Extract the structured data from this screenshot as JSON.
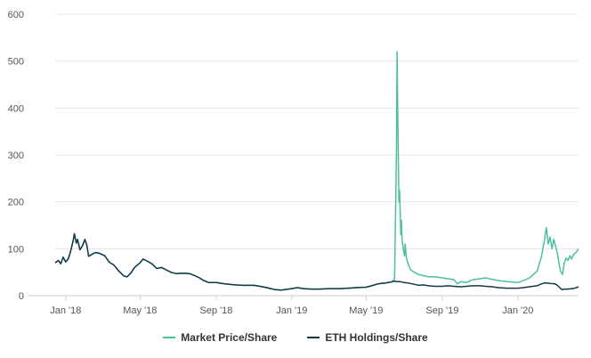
{
  "colors": {
    "market": "#4dbfa0",
    "holdings": "#15384a",
    "grid": "#e6e6e6",
    "axis": "#cccccc"
  },
  "chart_data": {
    "type": "line",
    "title": "",
    "xlabel": "",
    "ylabel": "",
    "xlim": [
      "2017-12-15",
      "2020-04-08"
    ],
    "ylim": [
      0,
      600
    ],
    "yticks": [
      0,
      100,
      200,
      300,
      400,
      500,
      600
    ],
    "xticks": [
      {
        "date": "2018-01-01",
        "label": "Jan '18"
      },
      {
        "date": "2018-05-01",
        "label": "May '18"
      },
      {
        "date": "2018-09-01",
        "label": "Sep '18"
      },
      {
        "date": "2019-01-01",
        "label": "Jan '19"
      },
      {
        "date": "2019-05-01",
        "label": "May '19"
      },
      {
        "date": "2019-09-01",
        "label": "Sep '19"
      },
      {
        "date": "2020-01-01",
        "label": "Jan '20"
      }
    ],
    "grid": "horizontal",
    "legend_position": "bottom-center",
    "series": [
      {
        "name": "Market Price/Share",
        "color": "#4dbfa0",
        "points": [
          [
            "2017-12-15",
            70
          ],
          [
            "2017-12-20",
            75
          ],
          [
            "2017-12-24",
            68
          ],
          [
            "2017-12-28",
            82
          ],
          [
            "2018-01-01",
            72
          ],
          [
            "2018-01-05",
            78
          ],
          [
            "2018-01-09",
            95
          ],
          [
            "2018-01-13",
            118
          ],
          [
            "2018-01-15",
            132
          ],
          [
            "2018-01-18",
            112
          ],
          [
            "2018-01-20",
            120
          ],
          [
            "2018-01-24",
            98
          ],
          [
            "2018-01-28",
            106
          ],
          [
            "2018-02-01",
            120
          ],
          [
            "2018-02-04",
            108
          ],
          [
            "2018-02-07",
            84
          ],
          [
            "2018-02-12",
            88
          ],
          [
            "2018-02-18",
            92
          ],
          [
            "2018-02-25",
            90
          ],
          [
            "2018-03-05",
            85
          ],
          [
            "2018-03-12",
            72
          ],
          [
            "2018-03-20",
            65
          ],
          [
            "2018-03-28",
            52
          ],
          [
            "2018-04-05",
            42
          ],
          [
            "2018-04-10",
            40
          ],
          [
            "2018-04-16",
            48
          ],
          [
            "2018-04-22",
            60
          ],
          [
            "2018-05-01",
            70
          ],
          [
            "2018-05-06",
            78
          ],
          [
            "2018-05-12",
            74
          ],
          [
            "2018-05-20",
            68
          ],
          [
            "2018-05-28",
            58
          ],
          [
            "2018-06-05",
            60
          ],
          [
            "2018-06-12",
            55
          ],
          [
            "2018-06-20",
            50
          ],
          [
            "2018-06-28",
            47
          ],
          [
            "2018-07-10",
            48
          ],
          [
            "2018-07-20",
            47
          ],
          [
            "2018-07-28",
            43
          ],
          [
            "2018-08-05",
            38
          ],
          [
            "2018-08-12",
            32
          ],
          [
            "2018-08-20",
            28
          ],
          [
            "2018-09-01",
            28
          ],
          [
            "2018-09-15",
            25
          ],
          [
            "2018-10-01",
            23
          ],
          [
            "2018-10-15",
            22
          ],
          [
            "2018-11-01",
            22
          ],
          [
            "2018-11-15",
            19
          ],
          [
            "2018-11-25",
            16
          ],
          [
            "2018-12-05",
            13
          ],
          [
            "2018-12-15",
            12
          ],
          [
            "2019-01-01",
            15
          ],
          [
            "2019-01-10",
            17
          ],
          [
            "2019-01-20",
            15
          ],
          [
            "2019-02-01",
            14
          ],
          [
            "2019-02-15",
            14
          ],
          [
            "2019-03-01",
            15
          ],
          [
            "2019-03-20",
            15
          ],
          [
            "2019-04-01",
            16
          ],
          [
            "2019-04-15",
            17
          ],
          [
            "2019-05-01",
            18
          ],
          [
            "2019-05-10",
            21
          ],
          [
            "2019-05-20",
            25
          ],
          [
            "2019-06-01",
            27
          ],
          [
            "2019-06-10",
            29
          ],
          [
            "2019-06-16",
            35
          ],
          [
            "2019-06-19",
            300
          ],
          [
            "2019-06-20",
            520
          ],
          [
            "2019-06-21",
            400
          ],
          [
            "2019-06-22",
            300
          ],
          [
            "2019-06-23",
            200
          ],
          [
            "2019-06-24",
            225
          ],
          [
            "2019-06-25",
            180
          ],
          [
            "2019-06-26",
            130
          ],
          [
            "2019-06-27",
            160
          ],
          [
            "2019-06-28",
            120
          ],
          [
            "2019-06-30",
            100
          ],
          [
            "2019-07-02",
            85
          ],
          [
            "2019-07-03",
            110
          ],
          [
            "2019-07-05",
            80
          ],
          [
            "2019-07-08",
            68
          ],
          [
            "2019-07-12",
            55
          ],
          [
            "2019-07-18",
            50
          ],
          [
            "2019-07-25",
            45
          ],
          [
            "2019-08-01",
            43
          ],
          [
            "2019-08-10",
            40
          ],
          [
            "2019-08-20",
            40
          ],
          [
            "2019-09-01",
            38
          ],
          [
            "2019-09-10",
            36
          ],
          [
            "2019-09-20",
            34
          ],
          [
            "2019-09-25",
            25
          ],
          [
            "2019-10-01",
            30
          ],
          [
            "2019-10-10",
            28
          ],
          [
            "2019-10-20",
            34
          ],
          [
            "2019-11-01",
            36
          ],
          [
            "2019-11-10",
            38
          ],
          [
            "2019-11-20",
            35
          ],
          [
            "2019-12-01",
            32
          ],
          [
            "2019-12-15",
            30
          ],
          [
            "2020-01-01",
            28
          ],
          [
            "2020-01-10",
            32
          ],
          [
            "2020-01-20",
            38
          ],
          [
            "2020-02-01",
            52
          ],
          [
            "2020-02-08",
            82
          ],
          [
            "2020-02-13",
            118
          ],
          [
            "2020-02-16",
            145
          ],
          [
            "2020-02-19",
            110
          ],
          [
            "2020-02-22",
            125
          ],
          [
            "2020-02-25",
            100
          ],
          [
            "2020-02-28",
            120
          ],
          [
            "2020-03-02",
            105
          ],
          [
            "2020-03-05",
            90
          ],
          [
            "2020-03-08",
            65
          ],
          [
            "2020-03-10",
            52
          ],
          [
            "2020-03-13",
            45
          ],
          [
            "2020-03-16",
            70
          ],
          [
            "2020-03-19",
            80
          ],
          [
            "2020-03-22",
            75
          ],
          [
            "2020-03-25",
            85
          ],
          [
            "2020-03-28",
            78
          ],
          [
            "2020-03-31",
            88
          ],
          [
            "2020-04-04",
            92
          ],
          [
            "2020-04-08",
            100
          ]
        ]
      },
      {
        "name": "ETH Holdings/Share",
        "color": "#15384a",
        "points": [
          [
            "2017-12-15",
            70
          ],
          [
            "2017-12-20",
            75
          ],
          [
            "2017-12-24",
            68
          ],
          [
            "2017-12-28",
            82
          ],
          [
            "2018-01-01",
            72
          ],
          [
            "2018-01-05",
            78
          ],
          [
            "2018-01-09",
            95
          ],
          [
            "2018-01-13",
            118
          ],
          [
            "2018-01-15",
            132
          ],
          [
            "2018-01-18",
            112
          ],
          [
            "2018-01-20",
            120
          ],
          [
            "2018-01-24",
            98
          ],
          [
            "2018-01-28",
            106
          ],
          [
            "2018-02-01",
            120
          ],
          [
            "2018-02-04",
            108
          ],
          [
            "2018-02-07",
            84
          ],
          [
            "2018-02-12",
            88
          ],
          [
            "2018-02-18",
            92
          ],
          [
            "2018-02-25",
            90
          ],
          [
            "2018-03-05",
            85
          ],
          [
            "2018-03-12",
            72
          ],
          [
            "2018-03-20",
            65
          ],
          [
            "2018-03-28",
            52
          ],
          [
            "2018-04-05",
            42
          ],
          [
            "2018-04-10",
            40
          ],
          [
            "2018-04-16",
            48
          ],
          [
            "2018-04-22",
            60
          ],
          [
            "2018-05-01",
            70
          ],
          [
            "2018-05-06",
            78
          ],
          [
            "2018-05-12",
            74
          ],
          [
            "2018-05-20",
            68
          ],
          [
            "2018-05-28",
            58
          ],
          [
            "2018-06-05",
            60
          ],
          [
            "2018-06-12",
            55
          ],
          [
            "2018-06-20",
            50
          ],
          [
            "2018-06-28",
            47
          ],
          [
            "2018-07-10",
            48
          ],
          [
            "2018-07-20",
            47
          ],
          [
            "2018-07-28",
            43
          ],
          [
            "2018-08-05",
            38
          ],
          [
            "2018-08-12",
            32
          ],
          [
            "2018-08-20",
            28
          ],
          [
            "2018-09-01",
            28
          ],
          [
            "2018-09-15",
            25
          ],
          [
            "2018-10-01",
            23
          ],
          [
            "2018-10-15",
            22
          ],
          [
            "2018-11-01",
            22
          ],
          [
            "2018-11-15",
            19
          ],
          [
            "2018-11-25",
            16
          ],
          [
            "2018-12-05",
            13
          ],
          [
            "2018-12-15",
            12
          ],
          [
            "2019-01-01",
            15
          ],
          [
            "2019-01-10",
            17
          ],
          [
            "2019-01-20",
            15
          ],
          [
            "2019-02-01",
            14
          ],
          [
            "2019-02-15",
            14
          ],
          [
            "2019-03-01",
            15
          ],
          [
            "2019-03-20",
            15
          ],
          [
            "2019-04-01",
            16
          ],
          [
            "2019-04-15",
            17
          ],
          [
            "2019-05-01",
            18
          ],
          [
            "2019-05-10",
            21
          ],
          [
            "2019-05-20",
            25
          ],
          [
            "2019-06-01",
            27
          ],
          [
            "2019-06-10",
            29
          ],
          [
            "2019-06-16",
            31
          ],
          [
            "2019-06-20",
            30
          ],
          [
            "2019-06-25",
            30
          ],
          [
            "2019-07-01",
            28
          ],
          [
            "2019-07-08",
            27
          ],
          [
            "2019-07-15",
            25
          ],
          [
            "2019-07-25",
            22
          ],
          [
            "2019-08-01",
            23
          ],
          [
            "2019-08-10",
            21
          ],
          [
            "2019-08-20",
            20
          ],
          [
            "2019-09-01",
            20
          ],
          [
            "2019-09-10",
            21
          ],
          [
            "2019-09-20",
            20
          ],
          [
            "2019-10-01",
            19
          ],
          [
            "2019-10-10",
            20
          ],
          [
            "2019-10-20",
            21
          ],
          [
            "2019-11-01",
            21
          ],
          [
            "2019-11-10",
            20
          ],
          [
            "2019-11-20",
            19
          ],
          [
            "2019-12-01",
            17
          ],
          [
            "2019-12-15",
            16
          ],
          [
            "2020-01-01",
            16
          ],
          [
            "2020-01-10",
            17
          ],
          [
            "2020-01-20",
            19
          ],
          [
            "2020-02-01",
            21
          ],
          [
            "2020-02-08",
            25
          ],
          [
            "2020-02-13",
            27
          ],
          [
            "2020-02-16",
            27
          ],
          [
            "2020-02-22",
            26
          ],
          [
            "2020-03-01",
            25
          ],
          [
            "2020-03-05",
            22
          ],
          [
            "2020-03-08",
            18
          ],
          [
            "2020-03-12",
            13
          ],
          [
            "2020-03-16",
            14
          ],
          [
            "2020-03-22",
            14
          ],
          [
            "2020-03-28",
            15
          ],
          [
            "2020-04-02",
            16
          ],
          [
            "2020-04-08",
            19
          ]
        ]
      }
    ]
  }
}
